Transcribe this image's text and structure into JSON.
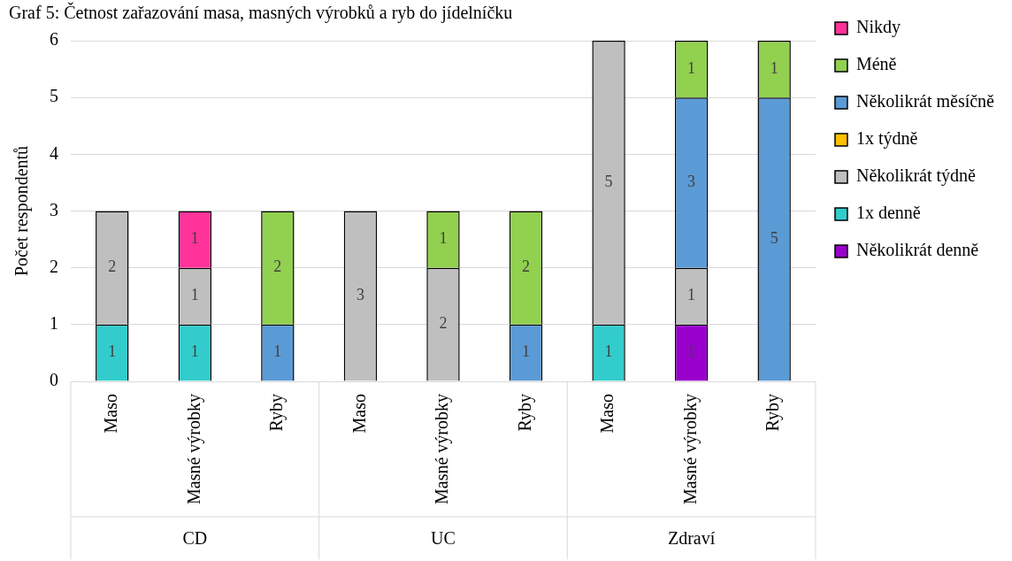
{
  "chart_data": {
    "type": "bar",
    "title": "Graf 5: Četnost zařazování masa, masných výrobků a ryb do jídelníčku",
    "ylabel": "Počet respondentů",
    "categories": [
      "Maso",
      "Masné výrobky",
      "Ryby",
      "Maso",
      "Masné výrobky",
      "Ryby",
      "Maso",
      "Masné výrobky",
      "Ryby"
    ],
    "annotations": [
      "CD",
      "UC",
      "Zdraví"
    ],
    "stacked": true,
    "ylim": [
      0,
      6
    ],
    "yticks": [
      0,
      1,
      2,
      3,
      4,
      5,
      6
    ],
    "grid": "y",
    "legend": "right",
    "data_labels": true,
    "series": [
      {
        "name": "Několikrát denně",
        "color": "#9900cc",
        "values": [
          null,
          null,
          null,
          null,
          null,
          null,
          null,
          1,
          null
        ]
      },
      {
        "name": "1x denně",
        "color": "#33cccc",
        "values": [
          1,
          1,
          null,
          null,
          null,
          null,
          1,
          null,
          null
        ]
      },
      {
        "name": "Několikrát týdně",
        "color": "#bfbfbf",
        "values": [
          2,
          1,
          null,
          3,
          2,
          null,
          5,
          1,
          null
        ]
      },
      {
        "name": "1x týdně",
        "color": "#ffc000",
        "values": [
          null,
          null,
          null,
          null,
          null,
          null,
          null,
          null,
          null
        ]
      },
      {
        "name": "Několikrát měsíčně",
        "color": "#5b9bd5",
        "values": [
          null,
          null,
          1,
          null,
          null,
          1,
          null,
          3,
          5
        ]
      },
      {
        "name": "Méně",
        "color": "#92d050",
        "values": [
          null,
          null,
          2,
          null,
          1,
          2,
          null,
          1,
          1
        ]
      },
      {
        "name": "Nikdy",
        "color": "#ff3399",
        "values": [
          null,
          1,
          null,
          null,
          null,
          null,
          null,
          null,
          null
        ]
      }
    ]
  }
}
